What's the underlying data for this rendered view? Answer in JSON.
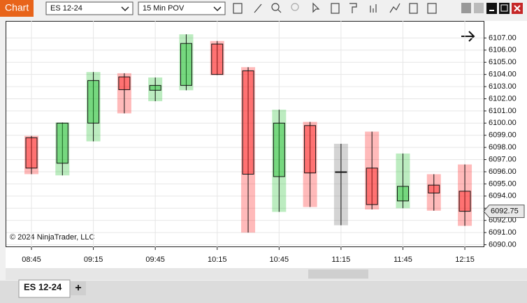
{
  "window": {
    "title": "Chart",
    "instrument": "ES 12-24",
    "interval": "15 Min POV",
    "tab": "ES 12-24",
    "add_tab": "+"
  },
  "chart_data": {
    "type": "candlestick",
    "categories": [
      "08:45",
      null,
      "09:15",
      null,
      "09:45",
      null,
      "10:15",
      null,
      "10:45",
      null,
      "11:15",
      null,
      "11:45",
      null,
      "12:15"
    ],
    "open": [
      6098.8,
      6096.7,
      6100.0,
      6103.8,
      6102.7,
      6103.1,
      6106.5,
      6104.3,
      6095.6,
      6099.8,
      6096.0,
      6096.3,
      6093.6,
      6094.9,
      6094.4
    ],
    "high": [
      6098.95,
      6100.05,
      6104.2,
      6104.1,
      6103.75,
      6107.3,
      6106.75,
      6104.6,
      6101.1,
      6100.1,
      6098.3,
      6099.3,
      6097.5,
      6095.8,
      6096.6
    ],
    "low": [
      6095.8,
      6095.7,
      6098.5,
      6100.8,
      6101.8,
      6102.7,
      6103.95,
      6091.0,
      6092.7,
      6093.1,
      6091.6,
      6092.9,
      6093.0,
      6092.8,
      6091.55
    ],
    "close": [
      6096.3,
      6100.0,
      6103.5,
      6102.75,
      6103.1,
      6106.55,
      6104.0,
      6095.8,
      6100.0,
      6095.9,
      6096.0,
      6093.3,
      6094.8,
      6094.25,
      6092.75
    ],
    "up_color": "#22c030",
    "down_color": "#ff1a1a",
    "flat_color": "#707070",
    "ylim": [
      6089.8,
      6108.4
    ],
    "yticks": [
      {
        "value": 6090,
        "label": "6090.00"
      },
      {
        "value": 6091,
        "label": "6091.00"
      },
      {
        "value": 6092,
        "label": "6092.00"
      },
      {
        "value": 6093,
        "label": "6093.00"
      },
      {
        "value": 6094,
        "label": "6094.00"
      },
      {
        "value": 6095,
        "label": "6095.00"
      },
      {
        "value": 6096,
        "label": "6096.00"
      },
      {
        "value": 6097,
        "label": "6097.00"
      },
      {
        "value": 6098,
        "label": "6098.00"
      },
      {
        "value": 6099,
        "label": "6099.00"
      },
      {
        "value": 6100,
        "label": "6100.00"
      },
      {
        "value": 6101,
        "label": "6101.00"
      },
      {
        "value": 6102,
        "label": "6102.00"
      },
      {
        "value": 6103,
        "label": "6103.00"
      },
      {
        "value": 6104,
        "label": "6104.00"
      },
      {
        "value": 6105,
        "label": "6105.00"
      },
      {
        "value": 6106,
        "label": "6106.00"
      },
      {
        "value": 6107,
        "label": "6107.00"
      }
    ],
    "grid": true,
    "annotation": "© 2024 NinjaTrader, LLC"
  }
}
